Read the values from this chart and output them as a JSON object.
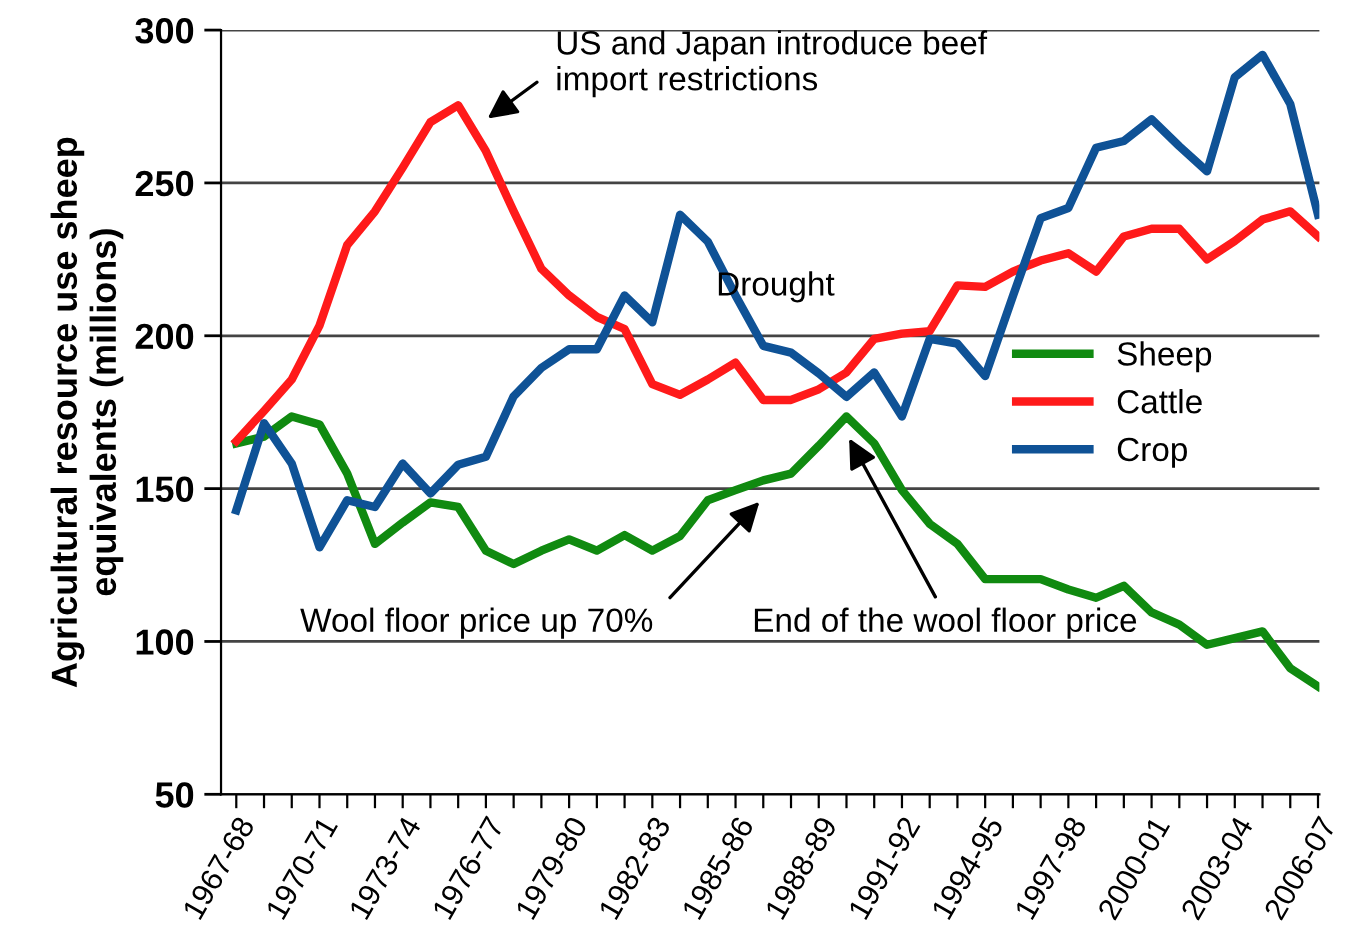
{
  "chart_data": {
    "type": "line",
    "ylabel": "Agricultural resource use sheep\nequivalents (millions)",
    "categories": [
      "1967-68",
      null,
      null,
      "1970-71",
      null,
      null,
      "1973-74",
      null,
      null,
      "1976-77",
      null,
      null,
      "1979-80",
      null,
      null,
      "1982-83",
      null,
      null,
      "1985-86",
      null,
      null,
      "1988-89",
      null,
      null,
      "1991-92",
      null,
      null,
      "1994-95",
      null,
      null,
      "1997-98",
      null,
      null,
      "2000-01",
      null,
      null,
      "2003-04",
      null,
      null,
      "2006-07"
    ],
    "series": [
      {
        "name": "Sheep",
        "color": "#108a10",
        "values": [
          164.8,
          167,
          173.6,
          171,
          154.9,
          131.9,
          138.9,
          145.5,
          144,
          129.7,
          125.3,
          129.7,
          133.4,
          129.7,
          134.8,
          129.7,
          134.5,
          146.2,
          149.5,
          152.7,
          154.9,
          164,
          173.6,
          164.8,
          149.5,
          138.5,
          131.9,
          120.4,
          120.4,
          120.4,
          117,
          114.3,
          118.2,
          109.5,
          105.5,
          98.9,
          101.1,
          103.3,
          91.2,
          85.3
        ]
      },
      {
        "name": "Cattle",
        "color": "#ff1a1a",
        "values": [
          165.5,
          175.4,
          185.7,
          203.3,
          229.7,
          240.7,
          255,
          269.9,
          275.4,
          260.4,
          240.7,
          221.9,
          213.2,
          206.2,
          202.2,
          184.2,
          180.7,
          185.7,
          191.2,
          179,
          179,
          182.5,
          188,
          199,
          200.7,
          201.5,
          216.5,
          216,
          221,
          224.6,
          227,
          221,
          232.5,
          235,
          235,
          225,
          231,
          238,
          240.7,
          232.5
        ]
      },
      {
        "name": "Crop",
        "color": "#0f5296",
        "values": [
          142.9,
          171.4,
          158.2,
          130.8,
          146.2,
          144,
          158.2,
          148.4,
          157.8,
          160.4,
          180.2,
          189.5,
          195.6,
          195.6,
          213.2,
          204.4,
          239.6,
          230.8,
          213.2,
          196.7,
          194.5,
          187.7,
          180,
          188,
          173.6,
          199,
          197.4,
          186.8,
          213,
          238.5,
          241.8,
          261.5,
          263.7,
          270.8,
          262,
          253.8,
          284.6,
          291.9,
          275.8,
          239.6
        ]
      }
    ],
    "ylim": [
      50,
      300
    ],
    "yticks": [
      50,
      100,
      150,
      200,
      250,
      300
    ],
    "grid": "y",
    "legend": "right",
    "marker": "none",
    "line_style": "solid",
    "annotations": [
      "US and Japan introduce beef\nimport restrictions",
      "Drought",
      "Wool floor price up 70%",
      "End of the wool floor price"
    ]
  }
}
